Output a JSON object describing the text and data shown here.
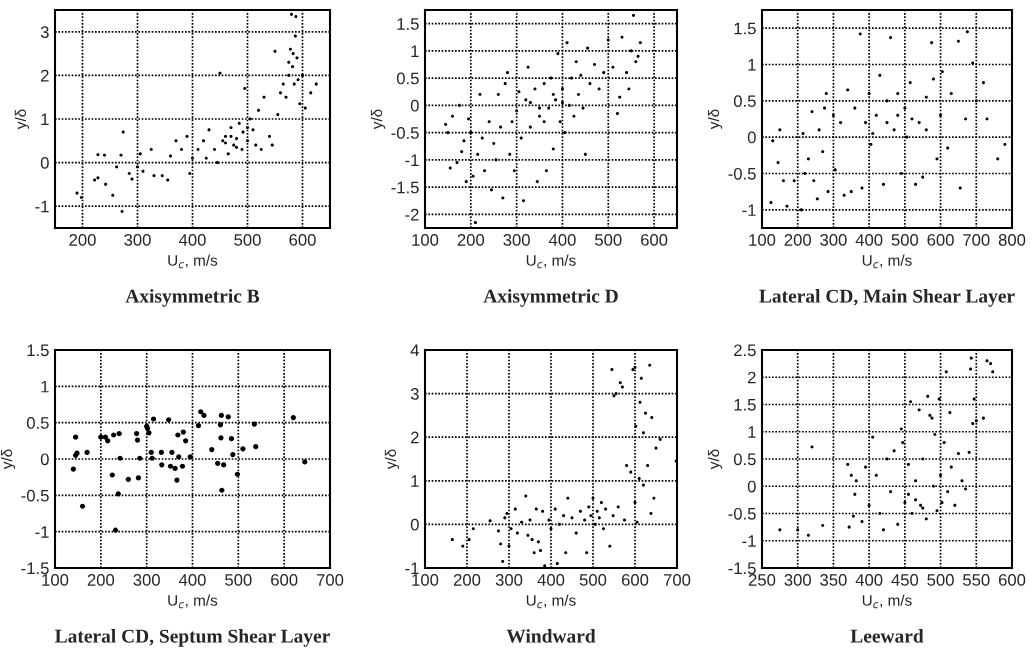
{
  "chart_data": [
    {
      "type": "scatter",
      "title": "Axisymmetric B",
      "xlabel": "U$_{c}$, m/s",
      "ylabel": "y/δ",
      "xlim": [
        150,
        650
      ],
      "xticks": [
        200,
        300,
        400,
        500,
        600
      ],
      "ylim": [
        -1.5,
        3.5
      ],
      "yticks": [
        -1,
        0,
        1,
        2,
        3
      ],
      "grid": true,
      "marker": "circle",
      "series": [
        {
          "color": "#000000",
          "x": [
            190,
            198,
            222,
            228,
            228,
            240,
            242,
            255,
            262,
            270,
            272,
            274,
            285,
            290,
            300,
            305,
            310,
            325,
            330,
            345,
            355,
            360,
            370,
            380,
            390,
            395,
            400,
            410,
            420,
            425,
            430,
            440,
            445,
            450,
            455,
            460,
            465,
            470,
            475,
            480,
            485,
            490,
            492,
            495,
            500,
            505,
            510,
            515,
            520,
            525,
            530,
            540,
            545,
            550,
            555,
            560,
            565,
            570,
            575,
            578,
            580,
            582,
            585,
            587,
            590,
            592,
            595,
            600,
            605,
            615,
            625,
            588,
            575,
            583,
            470,
            460,
            500,
            480
          ],
          "values": [
            -0.7,
            -0.8,
            -0.4,
            0.18,
            -0.35,
            0.17,
            -0.5,
            -0.75,
            -0.1,
            0.17,
            -1.12,
            0.7,
            -0.25,
            -0.38,
            -0.1,
            0.2,
            -0.2,
            0.3,
            -0.3,
            -0.3,
            -0.4,
            0.15,
            0.5,
            0.3,
            0.6,
            -0.25,
            0.1,
            0.3,
            0.5,
            0.1,
            0.75,
            0.3,
            0.0,
            2.05,
            0.5,
            0.6,
            0.2,
            0.8,
            0.4,
            0.55,
            0.9,
            0.3,
            0.7,
            1.7,
            0.5,
            1.0,
            0.75,
            0.4,
            1.2,
            0.3,
            1.5,
            0.6,
            0.4,
            2.55,
            1.1,
            1.6,
            1.8,
            1.5,
            2.0,
            2.6,
            3.4,
            2.2,
            1.8,
            2.9,
            2.4,
            1.9,
            1.35,
            2.0,
            1.25,
            1.6,
            1.8,
            3.35,
            2.3,
            2.5,
            0.6,
            0.45,
            0.8,
            0.35
          ]
        }
      ]
    },
    {
      "type": "scatter",
      "title": "Axisymmetric D",
      "xlabel": "U$_{c}$, m/s",
      "ylabel": "y/δ",
      "xlim": [
        100,
        650
      ],
      "xticks": [
        100,
        200,
        300,
        400,
        500,
        600
      ],
      "ylim": [
        -2.25,
        1.75
      ],
      "yticks": [
        -2,
        -1.5,
        -1,
        -0.5,
        0,
        0.5,
        1,
        1.5
      ],
      "grid": true,
      "marker": "circle",
      "series": [
        {
          "color": "#000000",
          "x": [
            145,
            150,
            155,
            160,
            170,
            175,
            180,
            185,
            190,
            195,
            200,
            205,
            210,
            215,
            220,
            225,
            230,
            240,
            245,
            250,
            255,
            260,
            265,
            270,
            275,
            280,
            285,
            290,
            295,
            300,
            305,
            310,
            315,
            320,
            325,
            330,
            340,
            345,
            350,
            360,
            365,
            370,
            375,
            380,
            385,
            390,
            395,
            400,
            405,
            410,
            415,
            420,
            425,
            430,
            435,
            440,
            445,
            450,
            455,
            460,
            470,
            480,
            490,
            500,
            510,
            520,
            525,
            530,
            540,
            545,
            550,
            555,
            560,
            570,
            565,
            350,
            330,
            380,
            400,
            360
          ],
          "values": [
            -0.35,
            -0.5,
            -1.15,
            -0.2,
            -1.05,
            0.0,
            -0.85,
            -0.65,
            -1.4,
            -0.25,
            -0.5,
            -1.3,
            -2.15,
            -0.9,
            0.2,
            -0.6,
            -1.2,
            -0.3,
            -1.55,
            -0.7,
            -1.0,
            0.2,
            -0.4,
            -1.7,
            0.4,
            0.6,
            -0.9,
            -0.3,
            -1.2,
            -0.1,
            0.25,
            -0.6,
            -1.75,
            0.1,
            0.7,
            -0.4,
            0.3,
            -1.4,
            -0.2,
            0.4,
            -1.2,
            -0.05,
            0.5,
            -0.8,
            0.1,
            0.95,
            -0.3,
            0.3,
            -0.5,
            1.15,
            0.0,
            0.5,
            -0.2,
            0.8,
            0.2,
            0.55,
            -0.05,
            -0.9,
            1.05,
            0.4,
            0.75,
            0.3,
            0.6,
            1.2,
            0.7,
            -0.15,
            0.15,
            1.25,
            0.6,
            0.3,
            1.0,
            1.65,
            0.8,
            1.15,
            0.9,
            -0.05,
            0.05,
            0.2,
            0.05,
            -0.3
          ]
        }
      ]
    },
    {
      "type": "scatter",
      "title": "Lateral CD, Main Shear Layer",
      "xlabel": "U$_{c}$, m/s",
      "ylabel": "y/δ",
      "xlim": [
        100,
        800
      ],
      "xticks": [
        100,
        200,
        300,
        400,
        500,
        600,
        700,
        800
      ],
      "ylim": [
        -1.25,
        1.75
      ],
      "yticks": [
        -1,
        -0.5,
        0,
        0.5,
        1,
        1.5
      ],
      "grid": true,
      "marker": "circle",
      "series": [
        {
          "color": "#000000",
          "x": [
            125,
            130,
            145,
            150,
            160,
            170,
            190,
            210,
            215,
            220,
            230,
            240,
            245,
            255,
            260,
            270,
            275,
            280,
            285,
            300,
            305,
            320,
            330,
            340,
            350,
            360,
            375,
            380,
            390,
            400,
            405,
            420,
            430,
            440,
            450,
            460,
            470,
            480,
            490,
            500,
            505,
            515,
            530,
            540,
            550,
            560,
            575,
            580,
            590,
            600,
            605,
            620,
            630,
            650,
            655,
            670,
            675,
            690,
            700,
            720,
            730,
            760,
            780,
            450,
            480,
            410,
            520,
            560
          ],
          "values": [
            -0.9,
            -0.05,
            -0.35,
            0.1,
            -0.6,
            -0.95,
            -0.6,
            -1.0,
            0.05,
            -0.5,
            -0.3,
            0.35,
            -0.6,
            -0.85,
            0.1,
            -0.2,
            0.4,
            0.6,
            -0.75,
            0.3,
            -0.45,
            0.2,
            -0.8,
            0.65,
            -0.75,
            0.4,
            1.42,
            -0.7,
            0.2,
            0.6,
            -0.1,
            0.3,
            0.85,
            -0.65,
            0.5,
            1.37,
            0.1,
            0.6,
            -0.5,
            0.4,
            0.0,
            0.75,
            -0.65,
            0.2,
            -0.55,
            0.55,
            1.3,
            0.8,
            -0.3,
            0.3,
            0.9,
            -0.15,
            0.6,
            1.32,
            -0.7,
            0.25,
            1.45,
            1.02,
            0.5,
            0.75,
            0.25,
            -0.3,
            -0.1,
            0.2,
            0.3,
            0.05,
            0.25,
            0.1
          ]
        }
      ]
    },
    {
      "type": "scatter",
      "title": "Lateral CD, Septum Shear Layer",
      "xlabel": "U$_{c}$, m/s",
      "ylabel": "y/δ",
      "xlim": [
        100,
        700
      ],
      "xticks": [
        100,
        200,
        300,
        400,
        500,
        600,
        700
      ],
      "ylim": [
        -1.5,
        1.5
      ],
      "yticks": [
        -1.5,
        -1,
        -0.5,
        0,
        0.5,
        1,
        1.5
      ],
      "grid": true,
      "marker": "circle",
      "series": [
        {
          "color": "#000000",
          "x": [
            140,
            145,
            145,
            148,
            160,
            170,
            200,
            210,
            215,
            225,
            228,
            232,
            238,
            240,
            242,
            260,
            278,
            280,
            282,
            285,
            300,
            302,
            305,
            310,
            312,
            315,
            332,
            333,
            348,
            352,
            355,
            362,
            366,
            368,
            370,
            378,
            380,
            385,
            395,
            413,
            418,
            425,
            442,
            455,
            461,
            462,
            463,
            464,
            468,
            478,
            485,
            488,
            498,
            510,
            535,
            538,
            620,
            645
          ],
          "values": [
            -0.14,
            0.3,
            0.05,
            0.08,
            -0.65,
            0.09,
            0.3,
            0.3,
            0.25,
            -0.22,
            0.33,
            -0.98,
            -0.48,
            0.35,
            0.01,
            -0.28,
            0.35,
            0.26,
            -0.26,
            0.01,
            0.45,
            0.42,
            0.36,
            0.09,
            0.01,
            0.55,
            0.09,
            -0.08,
            0.54,
            -0.1,
            0.09,
            -0.13,
            -0.29,
            0.33,
            0.03,
            -0.1,
            0.37,
            0.25,
            0.03,
            0.46,
            0.65,
            0.6,
            0.13,
            -0.06,
            0.47,
            0.29,
            0.6,
            -0.43,
            -0.08,
            0.58,
            0.28,
            0.06,
            -0.21,
            0.14,
            0.48,
            0.17,
            0.57,
            -0.04
          ]
        }
      ]
    },
    {
      "type": "scatter",
      "title": "Windward",
      "xlabel": "U$_{c}$, m/s",
      "ylabel": "y/δ",
      "xlim": [
        100,
        700
      ],
      "xticks": [
        100,
        200,
        300,
        400,
        500,
        600,
        700
      ],
      "ylim": [
        -1,
        4
      ],
      "yticks": [
        -1,
        0,
        1,
        2,
        3,
        4
      ],
      "grid": true,
      "marker": "circle",
      "series": [
        {
          "color": "#000000",
          "x": [
            165,
            190,
            205,
            215,
            255,
            275,
            280,
            285,
            290,
            295,
            300,
            305,
            315,
            320,
            330,
            340,
            345,
            350,
            355,
            360,
            365,
            370,
            375,
            380,
            385,
            395,
            400,
            410,
            415,
            420,
            430,
            435,
            440,
            450,
            460,
            470,
            480,
            485,
            490,
            495,
            500,
            505,
            510,
            515,
            520,
            525,
            530,
            540,
            545,
            548,
            550,
            555,
            560,
            565,
            570,
            575,
            580,
            590,
            595,
            600,
            602,
            605,
            610,
            612,
            615,
            620,
            625,
            630,
            635,
            638,
            640,
            645,
            650,
            660,
            698,
            600,
            620
          ],
          "values": [
            -0.35,
            -0.5,
            -0.35,
            -0.1,
            0.08,
            -0.15,
            -0.45,
            -0.85,
            0.15,
            0.25,
            -0.5,
            -0.1,
            0.35,
            -0.2,
            0.05,
            0.65,
            -0.25,
            0.1,
            -0.35,
            -0.65,
            0.35,
            -0.4,
            -0.6,
            0.3,
            -0.95,
            0.1,
            -0.1,
            0.35,
            -0.9,
            0.0,
            0.2,
            -0.65,
            0.6,
            0.15,
            -0.2,
            0.3,
            0.1,
            -0.65,
            0.4,
            0.2,
            0.6,
            0.0,
            0.3,
            0.15,
            0.5,
            -0.1,
            0.35,
            -0.5,
            3.55,
            0.2,
            2.95,
            3.0,
            0.4,
            3.25,
            3.15,
            0.1,
            1.35,
            1.2,
            3.55,
            3.6,
            2.25,
            0.05,
            1.05,
            2.8,
            3.35,
            2.1,
            2.55,
            1.35,
            3.65,
            0.25,
            2.45,
            0.6,
            1.75,
            1.95,
            1.45,
            0.5,
            0.9
          ]
        }
      ]
    },
    {
      "type": "scatter",
      "title": "Leeward",
      "xlabel": "U$_{c}$, m/s",
      "ylabel": "y/δ",
      "xlim": [
        250,
        600
      ],
      "xticks": [
        250,
        300,
        350,
        400,
        450,
        500,
        550,
        600
      ],
      "ylim": [
        -1.5,
        2.5
      ],
      "yticks": [
        -1.5,
        -1,
        -0.5,
        0,
        0.5,
        1,
        1.5,
        2,
        2.5
      ],
      "grid": true,
      "marker": "circle",
      "series": [
        {
          "color": "#000000",
          "x": [
            275,
            300,
            315,
            320,
            335,
            370,
            372,
            375,
            378,
            380,
            382,
            390,
            395,
            400,
            405,
            410,
            415,
            420,
            425,
            430,
            435,
            440,
            445,
            447,
            450,
            455,
            458,
            460,
            465,
            470,
            472,
            475,
            480,
            482,
            485,
            488,
            490,
            492,
            495,
            498,
            500,
            502,
            505,
            508,
            510,
            513,
            515,
            520,
            525,
            530,
            535,
            540,
            542,
            543,
            545,
            547,
            550,
            560,
            565,
            570,
            573,
            465,
            475,
            455
          ],
          "values": [
            -0.8,
            -0.8,
            -0.9,
            0.72,
            -0.72,
            0.4,
            -0.75,
            0.2,
            -0.55,
            -0.15,
            0.1,
            -0.65,
            0.35,
            -0.35,
            0.9,
            0.2,
            -0.5,
            -0.8,
            0.5,
            -0.1,
            0.65,
            -0.7,
            1.05,
            0.8,
            -0.3,
            0.4,
            1.55,
            -0.5,
            0.1,
            1.4,
            -0.35,
            0.5,
            -0.6,
            1.65,
            1.3,
            1.25,
            0.0,
            0.95,
            -0.45,
            1.6,
            0.2,
            -0.3,
            0.8,
            2.1,
            -0.1,
            1.35,
            0.35,
            -0.35,
            0.6,
            0.1,
            -0.05,
            0.62,
            2.15,
            2.35,
            1.15,
            1.6,
            1.2,
            1.25,
            2.3,
            2.25,
            2.1,
            -0.25,
            -0.4,
            -0.15
          ]
        }
      ]
    }
  ]
}
